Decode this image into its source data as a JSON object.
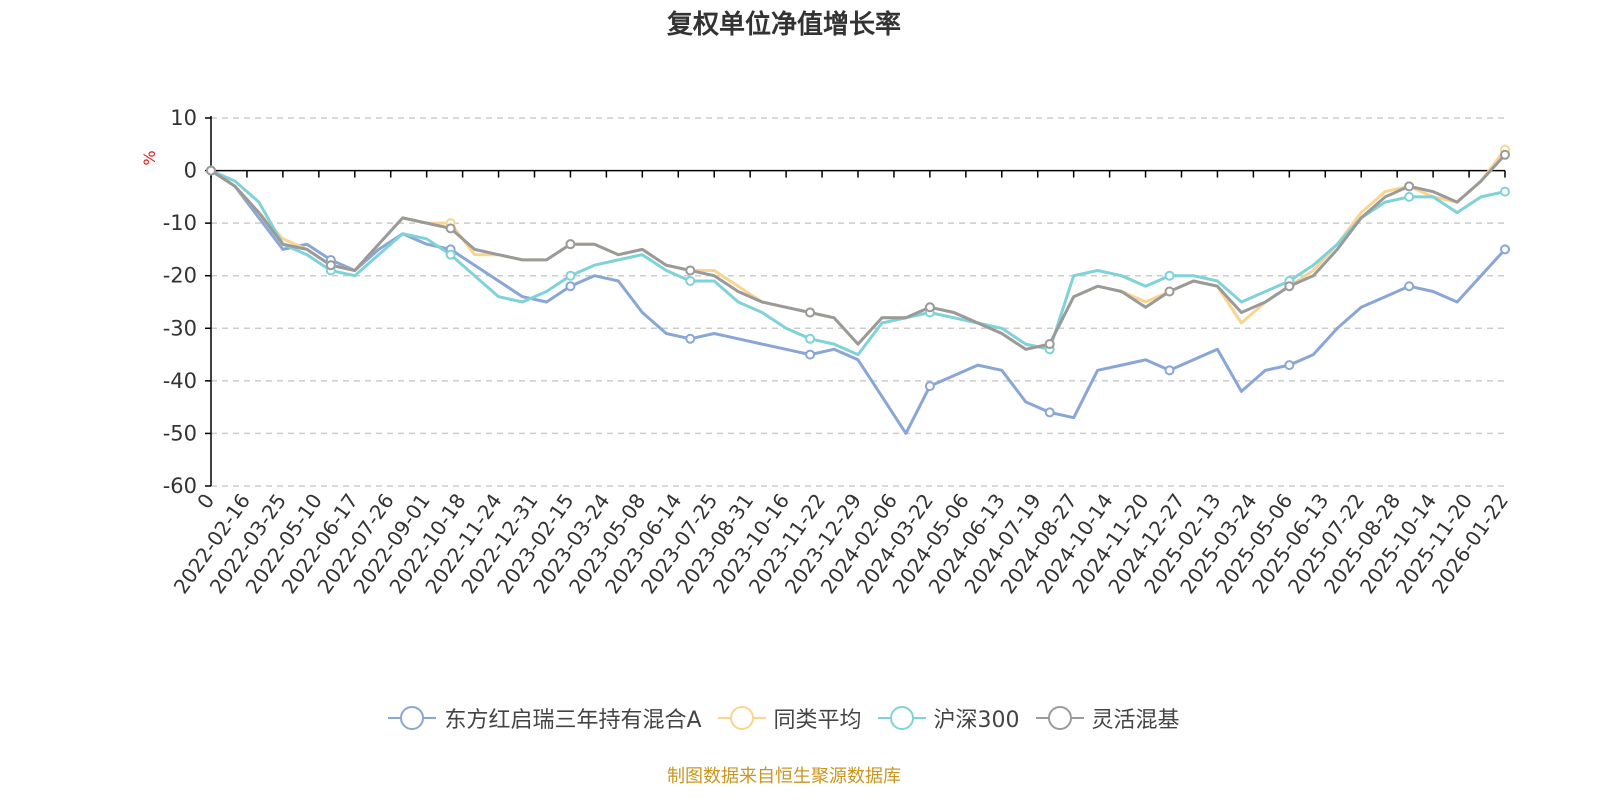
{
  "chart_data": {
    "type": "line",
    "title": "复权单位净值增长率",
    "ylabel": "%",
    "xlabel": "",
    "ylim": [
      -60,
      10
    ],
    "yticks": [
      10,
      0,
      -10,
      -20,
      -30,
      -40,
      -50,
      -60
    ],
    "grid": true,
    "legend_position": "bottom",
    "x_tick_labels": [
      "0",
      "2022-02-16",
      "2022-03-25",
      "2022-05-10",
      "2022-06-17",
      "2022-07-26",
      "2022-09-01",
      "2022-10-18",
      "2022-11-24",
      "2022-12-31",
      "2023-02-15",
      "2023-03-24",
      "2023-05-08",
      "2023-06-14",
      "2023-07-25",
      "2023-08-31",
      "2023-10-16",
      "2023-11-22",
      "2023-12-29",
      "2024-02-06",
      "2024-03-22",
      "2024-05-06",
      "2024-06-13",
      "2024-07-19",
      "2024-08-27",
      "2024-10-14",
      "2024-11-20",
      "2024-12-27",
      "2025-02-13",
      "2025-03-24",
      "2025-05-06",
      "2025-06-13",
      "2025-07-22",
      "2025-08-28",
      "2025-10-14",
      "2025-11-20",
      "2026-01-22"
    ],
    "series": [
      {
        "name": "东方红启瑞三年持有混合A",
        "color": "#8aa6d6",
        "values": [
          0,
          -3,
          -9,
          -15,
          -14,
          -17,
          -19,
          -15,
          -12,
          -14,
          -15,
          -18,
          -21,
          -24,
          -25,
          -22,
          -20,
          -21,
          -27,
          -31,
          -32,
          -31,
          -32,
          -33,
          -34,
          -35,
          -34,
          -36,
          -43,
          -50,
          -41,
          -39,
          -37,
          -38,
          -44,
          -46,
          -47,
          -38,
          -37,
          -36,
          -38,
          -36,
          -34,
          -42,
          -38,
          -37,
          -35,
          -30,
          -26,
          -24,
          -22,
          -23,
          -25,
          -20,
          -15
        ]
      },
      {
        "name": "同类平均",
        "color": "#f9d58f",
        "values": [
          0,
          -3,
          -8,
          -13,
          -15,
          -18,
          -19,
          -14,
          -9,
          -10,
          -10,
          -16,
          -16,
          -17,
          -17,
          -14,
          -14,
          -16,
          -15,
          -18,
          -19,
          -19,
          -22,
          -25,
          -26,
          -27,
          -28,
          -33,
          -28,
          -28,
          -26,
          -27,
          -29,
          -31,
          -34,
          -33,
          -24,
          -22,
          -23,
          -25,
          -23,
          -21,
          -22,
          -29,
          -25,
          -22,
          -19,
          -14,
          -8,
          -4,
          -3,
          -5,
          -6,
          -2,
          4
        ]
      },
      {
        "name": "沪深300",
        "color": "#7fd3d8",
        "values": [
          0,
          -2,
          -6,
          -14,
          -16,
          -19,
          -20,
          -16,
          -12,
          -13,
          -16,
          -20,
          -24,
          -25,
          -23,
          -20,
          -18,
          -17,
          -16,
          -19,
          -21,
          -21,
          -25,
          -27,
          -30,
          -32,
          -33,
          -35,
          -29,
          -28,
          -27,
          -28,
          -29,
          -30,
          -33,
          -34,
          -20,
          -19,
          -20,
          -22,
          -20,
          -20,
          -21,
          -25,
          -23,
          -21,
          -18,
          -14,
          -9,
          -6,
          -5,
          -5,
          -8,
          -5,
          -4
        ]
      },
      {
        "name": "灵活混基",
        "color": "#9a9a9a",
        "values": [
          0,
          -3,
          -8,
          -14,
          -15,
          -18,
          -19,
          -14,
          -9,
          -10,
          -11,
          -15,
          -16,
          -17,
          -17,
          -14,
          -14,
          -16,
          -15,
          -18,
          -19,
          -20,
          -23,
          -25,
          -26,
          -27,
          -28,
          -33,
          -28,
          -28,
          -26,
          -27,
          -29,
          -31,
          -34,
          -33,
          -24,
          -22,
          -23,
          -26,
          -23,
          -21,
          -22,
          -27,
          -25,
          -22,
          -20,
          -15,
          -9,
          -5,
          -3,
          -4,
          -6,
          -2,
          3
        ]
      }
    ]
  },
  "legend": {
    "items": [
      {
        "label": "东方红启瑞三年持有混合A",
        "color": "#8aa6d6"
      },
      {
        "label": "同类平均",
        "color": "#f9d58f"
      },
      {
        "label": "沪深300",
        "color": "#7fd3d8"
      },
      {
        "label": "灵活混基",
        "color": "#9a9a9a"
      }
    ]
  },
  "source_note": "制图数据来自恒生聚源数据库",
  "colors": {
    "axis": "#000000",
    "grid": "#cccccc",
    "ylabel": "#e02020",
    "source": "#c8971f"
  }
}
